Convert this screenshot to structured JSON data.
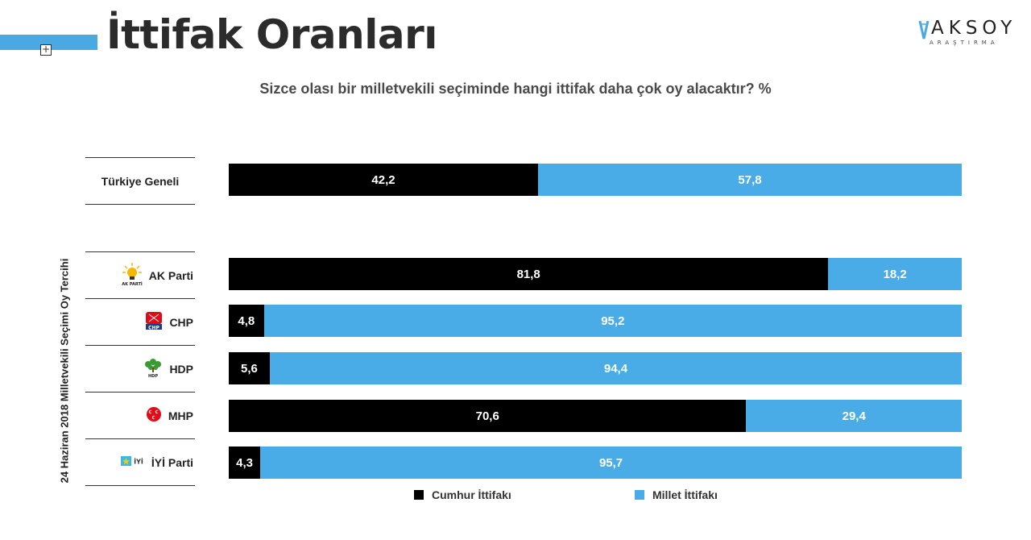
{
  "header": {
    "title": "İttifak Oranları",
    "logo_word": "AKSOY",
    "logo_sub": "ARAŞTIRMA",
    "accent_color": "#4aa9e3"
  },
  "question": "Sizce olası bir milletvekili seçiminde hangi ittifak daha çok oy alacaktır? %",
  "side_label": "24 Haziran 2018 Milletvekili Seçimi Oy Tercihi",
  "chart_data": {
    "type": "bar",
    "orientation": "horizontal",
    "stacked": true,
    "percent_scale": [
      0,
      100
    ],
    "categories": [
      "Türkiye Geneli",
      "AK Parti",
      "CHP",
      "HDP",
      "MHP",
      "İYİ Parti"
    ],
    "series": [
      {
        "name": "Cumhur İttifakı",
        "color": "#000000",
        "values": [
          42.2,
          81.8,
          4.8,
          5.6,
          70.6,
          4.3
        ],
        "labels": [
          "42,2",
          "81,8",
          "4,8",
          "5,6",
          "70,6",
          "4,3"
        ]
      },
      {
        "name": "Millet İttifakı",
        "color": "#4aace6",
        "values": [
          57.8,
          18.2,
          95.2,
          94.4,
          29.4,
          95.7
        ],
        "labels": [
          "57,8",
          "18,2",
          "95,2",
          "94,4",
          "29,4",
          "95,7"
        ]
      }
    ],
    "legend_position": "bottom",
    "party_icons": [
      "",
      "ak-parti-bulb-icon",
      "chp-six-arrows-icon",
      "hdp-tree-icon",
      "mhp-crescents-icon",
      "iyi-parti-star-icon"
    ],
    "icon_captions": [
      "",
      "AK PARTİ",
      "CHP",
      "HDP",
      "",
      "İYİ"
    ]
  }
}
